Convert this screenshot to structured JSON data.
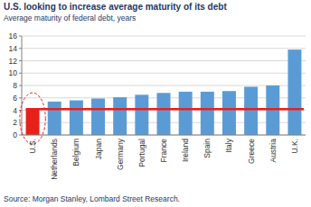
{
  "chart_data": {
    "type": "bar",
    "title": "U.S. looking to increase average maturity of its debt",
    "subtitle": "Average maturity of federal debt, years",
    "source": "Source: Morgan Stanley, Lombard Street Research.",
    "categories": [
      "U.S.",
      "Netherlands",
      "Belgium",
      "Japan",
      "Germany",
      "Portugal",
      "France",
      "Ireland",
      "Spain",
      "Italy",
      "Greece",
      "Austria",
      "U.K."
    ],
    "values": [
      4.2,
      5.4,
      5.6,
      5.9,
      6.1,
      6.5,
      6.8,
      7.0,
      7.0,
      7.1,
      7.8,
      8.0,
      13.8
    ],
    "colors": [
      "#e8201a",
      "#5b9bd5",
      "#5b9bd5",
      "#5b9bd5",
      "#5b9bd5",
      "#5b9bd5",
      "#5b9bd5",
      "#5b9bd5",
      "#5b9bd5",
      "#5b9bd5",
      "#5b9bd5",
      "#5b9bd5",
      "#5b9bd5"
    ],
    "reference_line": 4.2,
    "ylim": [
      0,
      16
    ],
    "yticks": [
      0,
      2,
      4,
      6,
      8,
      10,
      12,
      14,
      16
    ],
    "grid": true
  }
}
